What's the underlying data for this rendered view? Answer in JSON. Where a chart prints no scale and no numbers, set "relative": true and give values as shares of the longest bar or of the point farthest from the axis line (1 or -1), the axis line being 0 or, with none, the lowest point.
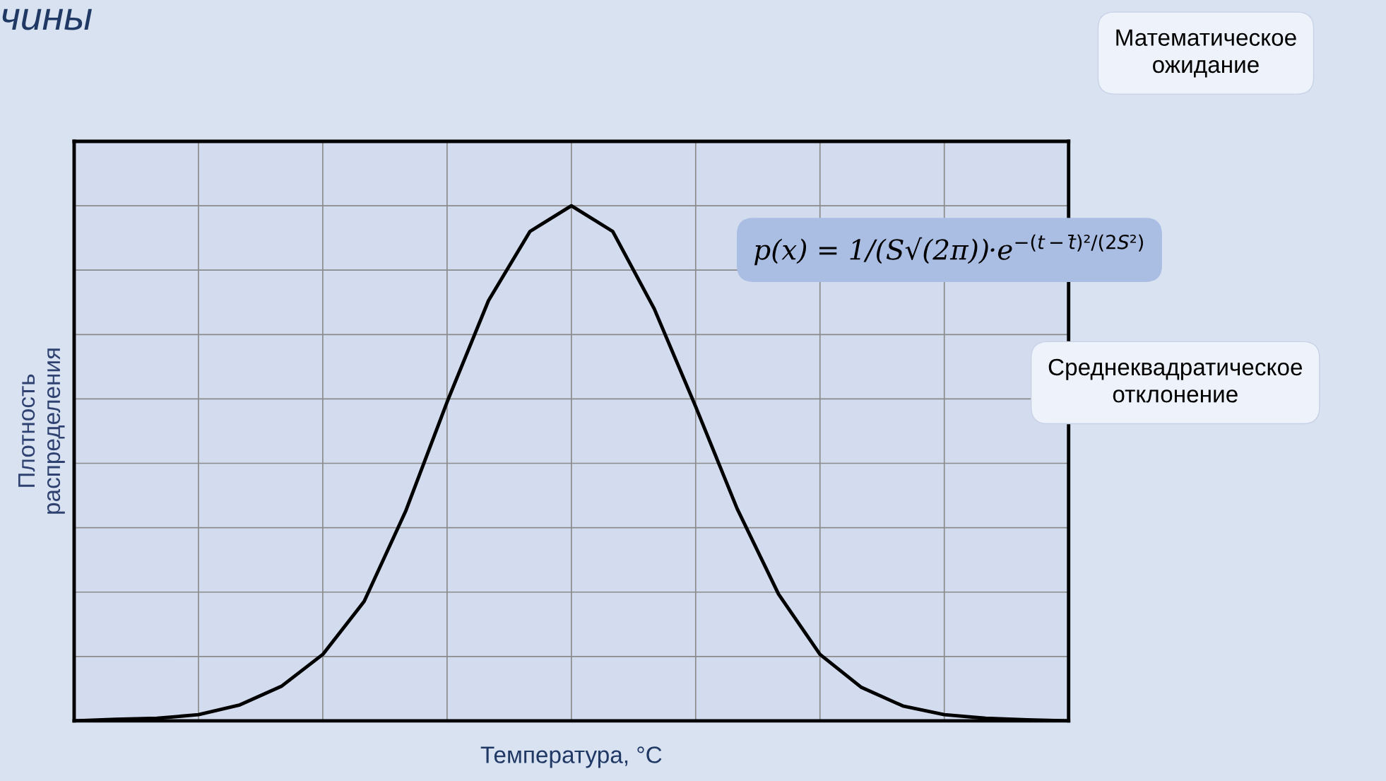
{
  "chart_data": {
    "type": "line",
    "title": "чины",
    "xlabel": "Температура, °C",
    "ylabel": "Плотность\nраспределения",
    "relative": true,
    "grid": true,
    "color": "#000000",
    "categories": [
      null,
      null,
      null,
      null,
      null,
      null,
      null,
      null,
      null,
      null,
      null,
      null,
      null,
      null,
      null,
      null,
      null,
      null,
      null,
      null,
      null,
      null,
      null,
      null,
      null
    ],
    "values": [
      0,
      0.003,
      0.005,
      0.012,
      0.031,
      0.067,
      0.129,
      0.232,
      0.407,
      0.619,
      0.816,
      0.95,
      1,
      0.95,
      0.8,
      0.61,
      0.412,
      0.246,
      0.129,
      0.065,
      0.029,
      0.012,
      0.005,
      0.002,
      0
    ],
    "annotations": [
      "p(x) = 1/(S√(2π))·e$^{−(t−t̄)²/(2S²)}$",
      "Математическое\nожидание",
      "Среднеквадратическое\nотклонение"
    ]
  }
}
